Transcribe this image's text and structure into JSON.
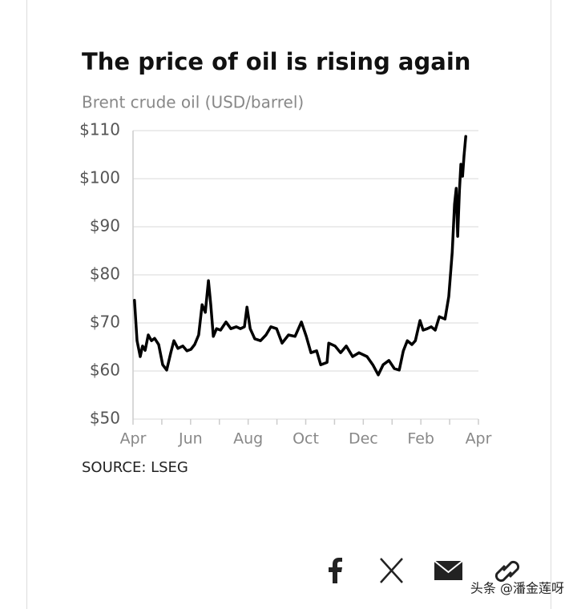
{
  "chart_data": {
    "type": "line",
    "title": "The price of oil is rising again",
    "subtitle": "Brent crude oil (USD/barrel)",
    "source": "SOURCE: LSEG",
    "color": "#000000",
    "x": [
      0.05,
      0.14,
      0.25,
      0.33,
      0.42,
      0.53,
      0.64,
      0.75,
      0.89,
      1.03,
      1.17,
      1.31,
      1.42,
      1.56,
      1.73,
      1.87,
      2.01,
      2.14,
      2.28,
      2.4,
      2.51,
      2.62,
      2.7,
      2.79,
      2.9,
      3.04,
      3.23,
      3.4,
      3.59,
      3.73,
      3.87,
      3.96,
      4.07,
      4.23,
      4.43,
      4.62,
      4.79,
      4.99,
      5.18,
      5.4,
      5.63,
      5.85,
      6.02,
      6.18,
      6.38,
      6.52,
      6.74,
      6.8,
      7.02,
      7.21,
      7.41,
      7.63,
      7.85,
      8.13,
      8.33,
      8.52,
      8.69,
      8.89,
      9.08,
      9.25,
      9.39,
      9.53,
      9.69,
      9.81,
      9.97,
      10.08,
      10.22,
      10.36,
      10.5,
      10.64,
      10.84,
      10.97,
      11.09,
      11.17,
      11.23,
      11.28,
      11.34,
      11.39,
      11.45,
      11.5,
      11.56
    ],
    "values": [
      74.7,
      66.3,
      63,
      65.2,
      64.3,
      67.5,
      66.3,
      66.8,
      65.5,
      61.3,
      60.2,
      63.8,
      66.3,
      64.7,
      65.2,
      64.2,
      64.5,
      65.5,
      67.5,
      73.8,
      72.2,
      78.8,
      73.8,
      67.2,
      68.8,
      68.5,
      70.2,
      68.8,
      69.2,
      68.8,
      69.2,
      73.3,
      68.8,
      66.7,
      66.3,
      67.5,
      69.2,
      68.8,
      65.8,
      67.5,
      67.2,
      70.2,
      67.2,
      63.8,
      64.2,
      61.3,
      61.8,
      65.8,
      65.2,
      63.8,
      65.2,
      63,
      63.8,
      63,
      61.3,
      59.2,
      61.3,
      62.2,
      60.5,
      60.2,
      64.2,
      66.3,
      65.5,
      66.3,
      70.5,
      68.5,
      68.8,
      69.2,
      68.5,
      71.3,
      70.8,
      75.5,
      84.7,
      94.7,
      98,
      88,
      97.5,
      103,
      100.5,
      104.7,
      108.8
    ],
    "xlim": [
      0,
      12
    ],
    "xticks": [
      {
        "value": 0,
        "label": "Apr"
      },
      {
        "value": 2,
        "label": "Jun"
      },
      {
        "value": 4,
        "label": "Aug"
      },
      {
        "value": 6,
        "label": "Oct"
      },
      {
        "value": 8,
        "label": "Dec"
      },
      {
        "value": 10,
        "label": "Feb"
      },
      {
        "value": 12,
        "label": "Apr"
      }
    ],
    "xminor_ticks": [
      1,
      3,
      5,
      7,
      9,
      11
    ],
    "ylim": [
      50,
      110
    ],
    "yticks": [
      {
        "value": 50,
        "label": "$50"
      },
      {
        "value": 60,
        "label": "$60"
      },
      {
        "value": 70,
        "label": "$70"
      },
      {
        "value": 80,
        "label": "$80"
      },
      {
        "value": 90,
        "label": "$90"
      },
      {
        "value": 100,
        "label": "$100"
      },
      {
        "value": 110,
        "label": "$110"
      }
    ],
    "grid": true
  },
  "watermark": "头条 @潘金莲呀"
}
